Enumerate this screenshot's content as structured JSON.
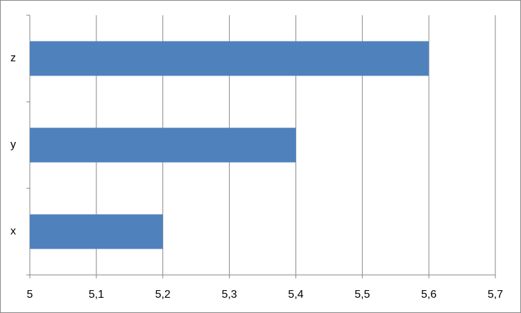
{
  "chart_data": {
    "type": "bar",
    "orientation": "horizontal",
    "categories": [
      "x",
      "y",
      "z"
    ],
    "values": [
      5.2,
      5.4,
      5.6
    ],
    "color": "#4f81bd",
    "xlim": [
      5,
      5.7
    ],
    "xticks": [
      5,
      {
        "value": 5.1,
        "label": "5,1"
      },
      {
        "value": 5.2,
        "label": "5,2"
      },
      {
        "value": 5.3,
        "label": "5,3"
      },
      {
        "value": 5.4,
        "label": "5,4"
      },
      {
        "value": 5.5,
        "label": "5,5"
      },
      {
        "value": 5.6,
        "label": "5,6"
      },
      {
        "value": 5.7,
        "label": "5,7"
      }
    ],
    "grid": true
  }
}
